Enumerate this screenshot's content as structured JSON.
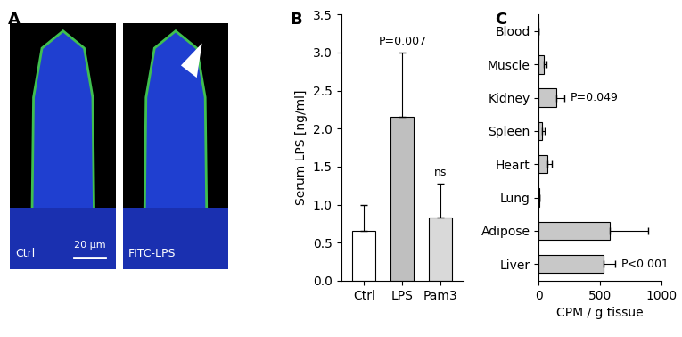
{
  "chart_data": [
    {
      "panel_label": "A",
      "type": "image",
      "images": [
        "Ctrl",
        "FITC-LPS"
      ],
      "scale_bar": "20 μm"
    },
    {
      "panel_label": "B",
      "type": "bar",
      "categories": [
        "Ctrl",
        "LPS",
        "Pam3"
      ],
      "values": [
        0.65,
        2.15,
        0.83
      ],
      "errors": [
        0.35,
        0.85,
        0.45
      ],
      "colors": [
        "#ffffff",
        "#bfbfbf",
        "#d9d9d9"
      ],
      "y_label": "Serum LPS [ng/ml]",
      "ylim": [
        0,
        3.5
      ],
      "yticks": [
        {
          "value": 0,
          "label": "0.0"
        },
        {
          "value": 0.5,
          "label": "0.5"
        },
        {
          "value": 1,
          "label": "1.0"
        },
        {
          "value": 1.5,
          "label": "1.5"
        },
        {
          "value": 2,
          "label": "2.0"
        },
        {
          "value": 2.5,
          "label": "2.5"
        },
        {
          "value": 3,
          "label": "3.0"
        },
        {
          "value": 3.5,
          "label": "3.5"
        }
      ],
      "annotations": [
        {
          "category": "LPS",
          "text": "P=0.007"
        },
        {
          "category": "Pam3",
          "text": "ns"
        }
      ]
    },
    {
      "panel_label": "C",
      "type": "bar",
      "orientation": "horizontal",
      "categories": [
        "Blood",
        "Muscle",
        "Kidney",
        "Spleen",
        "Heart",
        "Lung",
        "Adipose",
        "Liver"
      ],
      "values": [
        0,
        40,
        145,
        25,
        70,
        5,
        580,
        530
      ],
      "errors": [
        0,
        20,
        60,
        20,
        35,
        3,
        310,
        90
      ],
      "color": "#c8c8c8",
      "x_label": "CPM / g tissue",
      "xlim": [
        0,
        1000
      ],
      "xticks": [
        0,
        500,
        1000
      ],
      "annotations": [
        {
          "category": "Kidney",
          "text": "P=0.049"
        },
        {
          "category": "Liver",
          "text": "P<0.001"
        }
      ]
    }
  ]
}
